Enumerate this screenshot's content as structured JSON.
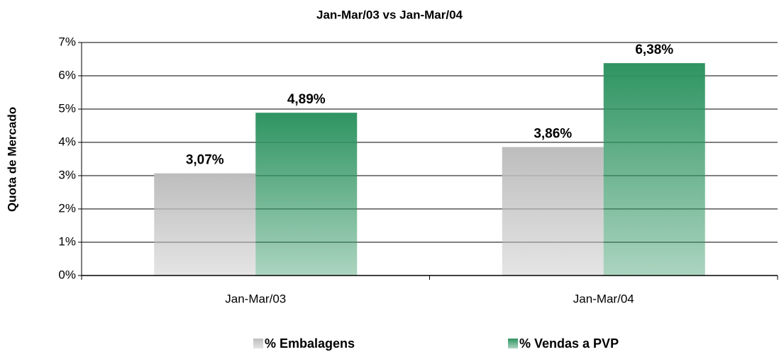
{
  "chart_data": {
    "type": "bar",
    "title": "Jan-Mar/03  vs  Jan-Mar/04",
    "y_label": "Quota de Mercado",
    "categories": [
      "Jan-Mar/03",
      "Jan-Mar/04"
    ],
    "series": [
      {
        "name": "% Embalagens",
        "color": "#bdbdbd",
        "values": [
          3.07,
          3.86
        ],
        "value_labels": [
          "3,07%",
          "3,86%"
        ]
      },
      {
        "name": "% Vendas a PVP",
        "color": "#2e9461",
        "values": [
          4.89,
          6.38
        ],
        "value_labels": [
          "4,89%",
          "6,38%"
        ]
      }
    ],
    "ylim": [
      0,
      7
    ],
    "yticks": [
      {
        "value": 0,
        "label": "0%"
      },
      {
        "value": 1,
        "label": "1%"
      },
      {
        "value": 2,
        "label": "2%"
      },
      {
        "value": 3,
        "label": "3%"
      },
      {
        "value": 4,
        "label": "4%"
      },
      {
        "value": 5,
        "label": "5%"
      },
      {
        "value": 6,
        "label": "6%"
      },
      {
        "value": 7,
        "label": "7%"
      }
    ],
    "grid": true,
    "legend": "bottom"
  }
}
